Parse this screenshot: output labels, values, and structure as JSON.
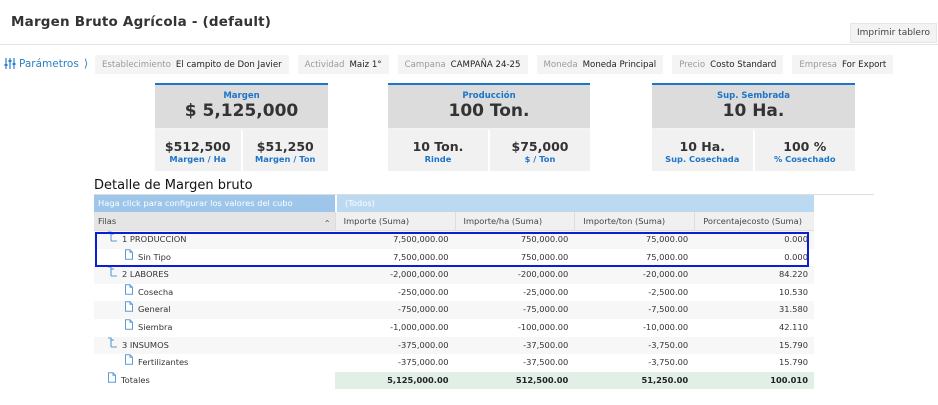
{
  "header": {
    "title": "Margen Bruto Agrícola - (default)",
    "print_label": "Imprimir tablero"
  },
  "params": {
    "label": "Parámetros"
  },
  "filters": [
    {
      "label": "Establecimiento",
      "value": "El campito de Don Javier"
    },
    {
      "label": "Actividad",
      "value": "Maiz 1°"
    },
    {
      "label": "Campana",
      "value": "CAMPAÑA 24-25"
    },
    {
      "label": "Moneda",
      "value": "Moneda Principal"
    },
    {
      "label": "Precio",
      "value": "Costo Standard"
    },
    {
      "label": "Empresa",
      "value": "For Export"
    }
  ],
  "kpis": [
    {
      "title": "Margen",
      "value": "$ 5,125,000",
      "subs": [
        {
          "value": "$512,500",
          "label": "Margen / Ha"
        },
        {
          "value": "$51,250",
          "label": "Margen / Ton"
        }
      ]
    },
    {
      "title": "Producción",
      "value": "100 Ton.",
      "subs": [
        {
          "value": "10 Ton.",
          "label": "Rinde"
        },
        {
          "value": "$75,000",
          "label": "$ / Ton"
        }
      ]
    },
    {
      "title": "Sup. Sembrada",
      "value": "10 Ha.",
      "subs": [
        {
          "value": "10 Ha.",
          "label": "Sup. Cosechada"
        },
        {
          "value": "100 %",
          "label": "% Cosechado"
        }
      ]
    }
  ],
  "detail": {
    "title": "Detalle de Margen bruto",
    "config_hint": "Haga click para configurar los valores del cubo",
    "todos": "(Todos)",
    "filas": "Filas",
    "columns": [
      "Importe (Suma)",
      "Importe/ha (Suma)",
      "Importe/ton (Suma)",
      "Porcentajecosto (Suma)"
    ],
    "rows": [
      {
        "name": "1 PRODUCCION",
        "level": 0,
        "icon": "folder-icon",
        "values": [
          "7,500,000.00",
          "750,000.00",
          "75,000.00",
          "0.000"
        ]
      },
      {
        "name": "Sin Tipo",
        "level": 1,
        "icon": "document-icon",
        "values": [
          "7,500,000.00",
          "750,000.00",
          "75,000.00",
          "0.000"
        ]
      },
      {
        "name": "2 LABORES",
        "level": 0,
        "icon": "folder-icon",
        "values": [
          "-2,000,000.00",
          "-200,000.00",
          "-20,000.00",
          "84.220"
        ]
      },
      {
        "name": "Cosecha",
        "level": 1,
        "icon": "document-icon",
        "values": [
          "-250,000.00",
          "-25,000.00",
          "-2,500.00",
          "10.530"
        ]
      },
      {
        "name": "General",
        "level": 1,
        "icon": "document-icon",
        "values": [
          "-750,000.00",
          "-75,000.00",
          "-7,500.00",
          "31.580"
        ]
      },
      {
        "name": "Siembra",
        "level": 1,
        "icon": "document-icon",
        "values": [
          "-1,000,000.00",
          "-100,000.00",
          "-10,000.00",
          "42.110"
        ]
      },
      {
        "name": "3 INSUMOS",
        "level": 0,
        "icon": "folder-icon",
        "values": [
          "-375,000.00",
          "-37,500.00",
          "-3,750.00",
          "15.790"
        ]
      },
      {
        "name": "Fertilizantes",
        "level": 1,
        "icon": "document-icon",
        "values": [
          "-375,000.00",
          "-37,500.00",
          "-3,750.00",
          "15.790"
        ]
      },
      {
        "name": "Totales",
        "level": 0,
        "icon": "document-icon",
        "values": [
          "5,125,000.00",
          "512,500.00",
          "51,250.00",
          "100.010"
        ],
        "total": true
      }
    ]
  }
}
